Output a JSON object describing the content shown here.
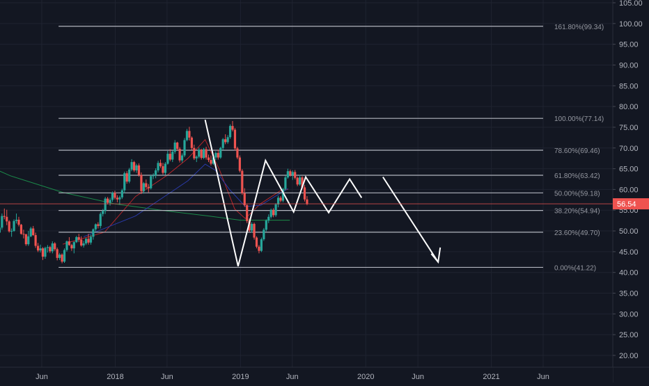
{
  "chart_data": {
    "type": "candlestick",
    "title": "",
    "colors": {
      "background": "#131722",
      "grid": "#1f2330",
      "axis_text": "#b2b5be",
      "up": "#26a69a",
      "down": "#ef5350",
      "fib_line": "#b2b5be",
      "fib_text": "#9598a1",
      "drawing": "#ffffff",
      "price_tag": "#ef5350",
      "ma_green": "#1b8a4a",
      "ma_red": "#b3262b",
      "ma_blue": "#2a3aa8"
    },
    "y_axis": {
      "ylim": [
        15.5,
        106
      ],
      "tick_labels": [
        "105.00",
        "100.00",
        "95.00",
        "90.00",
        "85.00",
        "80.00",
        "75.00",
        "70.00",
        "65.00",
        "60.00",
        "55.00",
        "50.00",
        "45.00",
        "40.00",
        "35.00",
        "30.00",
        "25.00",
        "20.00"
      ]
    },
    "x_axis": {
      "tick_labels": [
        "Jun",
        "2018",
        "Jun",
        "2019",
        "Jun",
        "2020",
        "Jun",
        "2021",
        "Jun"
      ],
      "tick_dates": [
        "2017-06-01",
        "2018-01-01",
        "2018-06-01",
        "2019-01-01",
        "2019-06-01",
        "2020-01-01",
        "2020-06-01",
        "2021-01-01",
        "2021-06-01"
      ]
    },
    "current_price": {
      "label": "56.54",
      "value": 56.54
    },
    "fib_levels": [
      {
        "label": "161.80%(99.34)",
        "value": 99.34
      },
      {
        "label": "100.00%(77.14)",
        "value": 77.14
      },
      {
        "label": "78.60%(69.46)",
        "value": 69.46
      },
      {
        "label": "61.80%(63.42)",
        "value": 63.42
      },
      {
        "label": "50.00%(59.18)",
        "value": 59.18
      },
      {
        "label": "38.20%(54.94)",
        "value": 54.94
      },
      {
        "label": "23.60%(49.70)",
        "value": 49.7
      },
      {
        "label": "0.00%(41.22)",
        "value": 41.22
      }
    ],
    "fib_range": {
      "start": "2017-07-20",
      "end": "2021-06-01"
    },
    "projection_path": [
      {
        "date": "2018-09-20",
        "value": 76.8
      },
      {
        "date": "2018-12-25",
        "value": 41.5
      },
      {
        "date": "2019-03-15",
        "value": 67.0
      },
      {
        "date": "2019-06-05",
        "value": 54.6
      },
      {
        "date": "2019-07-10",
        "value": 63.0
      },
      {
        "date": "2019-09-15",
        "value": 54.4
      },
      {
        "date": "2019-11-15",
        "value": 62.5
      },
      {
        "date": "2019-12-20",
        "value": 58.0
      }
    ],
    "arrow_path": [
      {
        "date": "2020-02-20",
        "value": 63.0
      },
      {
        "date": "2020-07-30",
        "value": 42.5
      }
    ],
    "arrow_head": [
      {
        "date": "2020-07-10",
        "value": 44.5
      },
      {
        "date": "2020-07-30",
        "value": 42.5
      },
      {
        "date": "2020-08-05",
        "value": 46.0
      }
    ],
    "candle_series": {
      "start": "2017-01-01",
      "values": [
        [
          51.7,
          52.3,
          50.6,
          51.0
        ],
        [
          51.0,
          52.2,
          50.2,
          51.2
        ],
        [
          51.2,
          51.5,
          50.1,
          50.7
        ],
        [
          50.7,
          51.0,
          49.0,
          49.6
        ],
        [
          49.6,
          51.6,
          49.3,
          50.8
        ],
        [
          50.8,
          54.2,
          50.3,
          53.6
        ],
        [
          53.6,
          55.4,
          52.8,
          53.4
        ],
        [
          53.4,
          55.1,
          51.4,
          52.3
        ],
        [
          52.3,
          52.6,
          49.6,
          49.9
        ],
        [
          49.9,
          50.6,
          48.6,
          50.0
        ],
        [
          50.0,
          52.8,
          49.8,
          52.4
        ],
        [
          52.4,
          54.2,
          51.8,
          52.7
        ],
        [
          52.7,
          53.4,
          51.1,
          51.5
        ],
        [
          51.5,
          51.7,
          49.1,
          49.3
        ],
        [
          49.3,
          50.3,
          48.2,
          49.2
        ],
        [
          49.2,
          49.3,
          46.4,
          46.8
        ],
        [
          46.8,
          50.0,
          46.4,
          48.7
        ],
        [
          48.7,
          51.0,
          48.5,
          50.6
        ],
        [
          50.6,
          51.2,
          48.8,
          49.0
        ],
        [
          49.0,
          49.6,
          45.9,
          46.4
        ],
        [
          46.4,
          47.1,
          44.9,
          45.3
        ],
        [
          45.3,
          46.7,
          44.8,
          45.8
        ],
        [
          45.8,
          46.1,
          43.0,
          43.8
        ],
        [
          43.8,
          46.2,
          43.3,
          45.9
        ],
        [
          45.9,
          46.6,
          44.8,
          46.1
        ],
        [
          46.1,
          46.4,
          44.7,
          45.1
        ],
        [
          45.1,
          47.5,
          44.6,
          47.0
        ],
        [
          47.0,
          47.3,
          45.2,
          45.6
        ],
        [
          45.6,
          46.0,
          42.9,
          43.5
        ],
        [
          43.5,
          44.7,
          43.0,
          44.3
        ],
        [
          44.3,
          44.6,
          42.2,
          42.6
        ],
        [
          42.6,
          45.8,
          42.3,
          45.4
        ],
        [
          45.4,
          47.7,
          45.0,
          47.5
        ],
        [
          47.5,
          48.5,
          46.4,
          46.6
        ],
        [
          46.6,
          46.9,
          45.2,
          45.8
        ],
        [
          45.8,
          47.5,
          44.6,
          47.3
        ],
        [
          47.3,
          48.8,
          47.1,
          48.5
        ],
        [
          48.5,
          49.3,
          47.3,
          47.9
        ],
        [
          47.9,
          48.7,
          46.2,
          46.5
        ],
        [
          46.5,
          47.6,
          46.0,
          47.0
        ],
        [
          47.0,
          48.4,
          46.6,
          48.1
        ],
        [
          48.1,
          49.3,
          46.7,
          47.2
        ],
        [
          47.2,
          49.1,
          46.7,
          48.6
        ],
        [
          48.6,
          50.6,
          47.9,
          50.4
        ],
        [
          50.4,
          51.8,
          49.9,
          51.6
        ],
        [
          51.6,
          52.1,
          50.6,
          51.2
        ],
        [
          51.2,
          54.5,
          50.6,
          54.1
        ],
        [
          54.1,
          55.3,
          53.5,
          54.8
        ],
        [
          54.8,
          58.2,
          54.1,
          57.8
        ],
        [
          57.8,
          58.2,
          56.4,
          56.8
        ],
        [
          56.8,
          58.0,
          56.1,
          57.5
        ],
        [
          57.5,
          59.5,
          57.0,
          59.2
        ],
        [
          59.2,
          59.7,
          57.6,
          58.0
        ],
        [
          58.0,
          58.6,
          56.9,
          57.6
        ],
        [
          57.6,
          58.5,
          56.3,
          58.1
        ],
        [
          58.1,
          60.2,
          57.7,
          59.8
        ],
        [
          59.8,
          64.3,
          59.1,
          63.9
        ],
        [
          63.9,
          64.4,
          61.4,
          61.9
        ],
        [
          61.9,
          65.2,
          61.5,
          64.8
        ],
        [
          64.8,
          67.3,
          64.4,
          66.6
        ],
        [
          66.6,
          66.9,
          64.2,
          64.6
        ],
        [
          64.6,
          66.2,
          64.0,
          65.8
        ],
        [
          65.8,
          66.3,
          63.1,
          63.5
        ],
        [
          63.5,
          64.1,
          58.9,
          59.6
        ],
        [
          59.6,
          61.8,
          59.0,
          61.5
        ],
        [
          61.5,
          62.4,
          60.2,
          60.6
        ],
        [
          60.6,
          61.3,
          59.3,
          60.3
        ],
        [
          60.3,
          63.6,
          60.0,
          63.2
        ],
        [
          63.2,
          63.9,
          62.5,
          63.4
        ],
        [
          63.4,
          65.1,
          62.7,
          64.6
        ],
        [
          64.6,
          66.9,
          64.1,
          66.4
        ],
        [
          66.4,
          67.2,
          65.2,
          65.6
        ],
        [
          65.6,
          66.4,
          63.6,
          64.0
        ],
        [
          64.0,
          66.6,
          63.5,
          66.2
        ],
        [
          66.2,
          69.3,
          66.0,
          68.6
        ],
        [
          68.6,
          69.7,
          66.8,
          67.2
        ],
        [
          67.2,
          69.4,
          66.6,
          69.1
        ],
        [
          69.1,
          71.9,
          68.6,
          71.3
        ],
        [
          71.3,
          71.5,
          69.3,
          69.8
        ],
        [
          69.8,
          70.2,
          66.5,
          67.0
        ],
        [
          67.0,
          68.7,
          66.5,
          68.2
        ],
        [
          68.2,
          72.4,
          67.8,
          71.9
        ],
        [
          71.9,
          74.6,
          71.6,
          74.1
        ],
        [
          74.1,
          75.1,
          71.8,
          72.5
        ],
        [
          72.5,
          72.8,
          69.5,
          70.0
        ],
        [
          70.0,
          70.8,
          67.1,
          67.5
        ],
        [
          67.5,
          68.2,
          66.6,
          67.9
        ],
        [
          67.9,
          70.1,
          67.5,
          69.6
        ],
        [
          69.6,
          69.8,
          67.2,
          67.6
        ],
        [
          67.6,
          70.0,
          67.3,
          69.7
        ],
        [
          69.7,
          70.3,
          67.2,
          67.7
        ],
        [
          67.7,
          68.4,
          66.6,
          67.1
        ],
        [
          67.1,
          68.2,
          65.8,
          66.2
        ],
        [
          66.2,
          68.1,
          65.9,
          67.7
        ],
        [
          67.7,
          69.2,
          67.1,
          68.8
        ],
        [
          68.8,
          69.6,
          67.2,
          67.7
        ],
        [
          67.7,
          70.3,
          67.4,
          70.0
        ],
        [
          70.0,
          72.4,
          69.5,
          72.1
        ],
        [
          72.1,
          73.3,
          70.9,
          71.4
        ],
        [
          71.4,
          73.1,
          71.0,
          72.6
        ],
        [
          72.6,
          75.7,
          72.2,
          75.3
        ],
        [
          75.3,
          76.5,
          74.0,
          74.4
        ],
        [
          74.4,
          74.8,
          69.4,
          69.9
        ],
        [
          69.9,
          70.3,
          67.3,
          67.7
        ],
        [
          67.7,
          68.2,
          64.1,
          64.5
        ],
        [
          64.5,
          64.9,
          58.7,
          59.1
        ],
        [
          59.1,
          60.3,
          55.8,
          56.2
        ],
        [
          56.2,
          56.5,
          51.9,
          52.4
        ],
        [
          52.4,
          53.0,
          49.7,
          50.1
        ],
        [
          50.1,
          52.1,
          49.6,
          51.7
        ],
        [
          51.7,
          52.0,
          47.9,
          48.4
        ],
        [
          48.4,
          48.7,
          45.8,
          46.2
        ],
        [
          46.2,
          46.6,
          44.6,
          45.2
        ],
        [
          45.2,
          48.4,
          44.9,
          48.0
        ],
        [
          48.0,
          50.7,
          47.6,
          50.3
        ],
        [
          50.3,
          52.8,
          49.9,
          52.5
        ],
        [
          52.5,
          54.0,
          51.9,
          53.4
        ],
        [
          53.4,
          55.4,
          53.0,
          55.1
        ],
        [
          55.1,
          55.5,
          53.3,
          53.8
        ],
        [
          53.8,
          56.7,
          53.4,
          56.4
        ],
        [
          56.4,
          58.5,
          55.7,
          58.0
        ],
        [
          58.0,
          58.4,
          56.9,
          57.3
        ],
        [
          57.3,
          60.4,
          56.9,
          60.1
        ],
        [
          60.1,
          63.3,
          59.8,
          62.9
        ],
        [
          62.9,
          65.0,
          62.6,
          64.4
        ],
        [
          64.4,
          64.8,
          63.1,
          63.5
        ],
        [
          63.5,
          64.6,
          62.3,
          64.2
        ],
        [
          64.2,
          64.7,
          62.4,
          62.8
        ],
        [
          62.8,
          63.1,
          60.8,
          61.2
        ],
        [
          61.2,
          63.5,
          60.9,
          62.9
        ],
        [
          62.9,
          63.2,
          60.1,
          60.5
        ],
        [
          60.5,
          61.1,
          57.1,
          57.6
        ],
        [
          57.6,
          58.4,
          56.2,
          56.5
        ]
      ]
    },
    "moving_averages": [
      {
        "color": "#1b8a4a",
        "points": [
          [
            "2016-10-15",
            68.3
          ],
          [
            "2017-03-01",
            63.3
          ],
          [
            "2017-08-01",
            59.3
          ],
          [
            "2018-01-01",
            56.5
          ],
          [
            "2018-06-01",
            54.8
          ],
          [
            "2018-10-01",
            53.6
          ],
          [
            "2019-01-01",
            52.6
          ],
          [
            "2019-04-01",
            52.6
          ],
          [
            "2019-05-25",
            52.6
          ]
        ]
      },
      {
        "color": "#b3262b",
        "points": [
          [
            "2017-08-01",
            46.8
          ],
          [
            "2017-12-01",
            49.7
          ],
          [
            "2018-03-01",
            58.3
          ],
          [
            "2018-06-01",
            63.4
          ],
          [
            "2018-08-01",
            67.5
          ],
          [
            "2018-09-20",
            72.0
          ],
          [
            "2018-11-01",
            64.7
          ],
          [
            "2018-12-15",
            55.3
          ],
          [
            "2019-01-15",
            53.0
          ],
          [
            "2019-03-01",
            56.6
          ],
          [
            "2019-05-01",
            59.9
          ],
          [
            "2019-05-20",
            60.0
          ]
        ]
      },
      {
        "color": "#2a3aa8",
        "points": [
          [
            "2017-10-01",
            48.6
          ],
          [
            "2018-03-01",
            53.6
          ],
          [
            "2018-08-01",
            62.1
          ],
          [
            "2018-09-20",
            66.1
          ],
          [
            "2018-10-20",
            64.6
          ],
          [
            "2018-12-01",
            59.9
          ],
          [
            "2019-01-15",
            55.9
          ],
          [
            "2019-03-01",
            56.2
          ],
          [
            "2019-05-01",
            59.3
          ],
          [
            "2019-05-20",
            60.2
          ]
        ]
      }
    ]
  }
}
